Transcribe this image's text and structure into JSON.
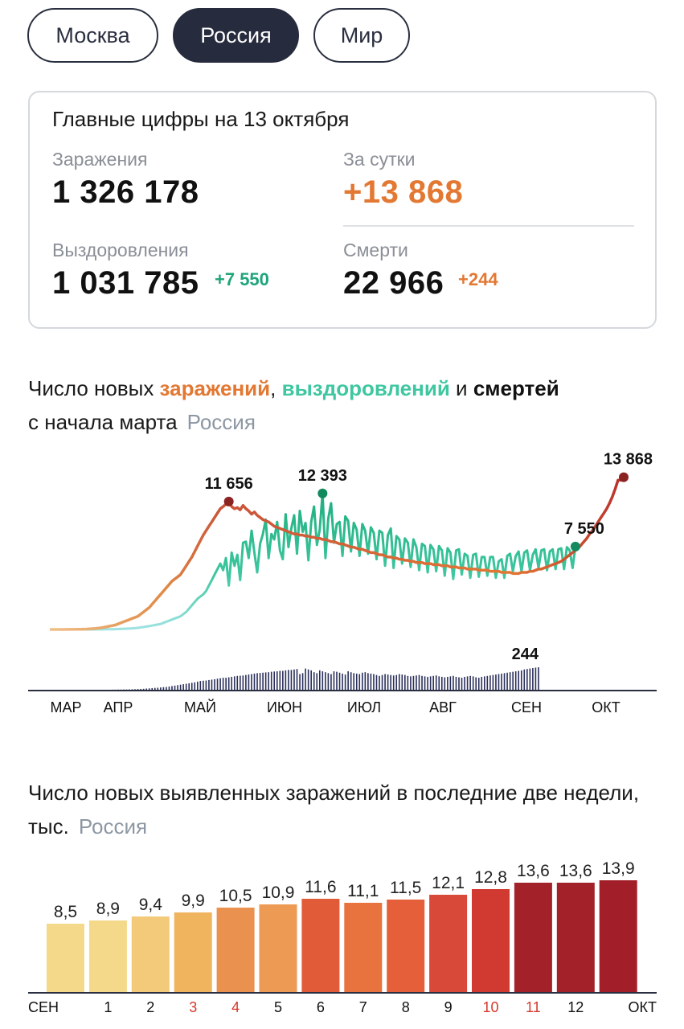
{
  "tabs": [
    {
      "label": "Москва",
      "active": false
    },
    {
      "label": "Россия",
      "active": true
    },
    {
      "label": "Мир",
      "active": false
    }
  ],
  "card": {
    "title": "Главные цифры на 13 октября",
    "infections": {
      "label": "Заражения",
      "value": "1 326 178"
    },
    "daily": {
      "label": "За сутки",
      "value": "+13 868"
    },
    "recoveries": {
      "label": "Выздоровления",
      "value": "1 031 785",
      "delta": "+7 550"
    },
    "deaths": {
      "label": "Смерти",
      "value": "22 966",
      "delta": "+244"
    }
  },
  "chart1_title": {
    "prefix": "Число новых ",
    "infections": "заражений",
    "sep1": ", ",
    "recoveries": "выздоровлений",
    "sep2": " и ",
    "deaths": "смертей",
    "line2": "с начала марта",
    "region": "Россия"
  },
  "chart2_title": {
    "text": "Число новых выявленных заражений в последние две недели, тыс.",
    "region": "Россия"
  },
  "colors": {
    "infections": "#e37833",
    "recoveries": "#3ec7a0",
    "recoveries_light": "#9fe3e2",
    "deaths": "#2a2f5a",
    "peak_dot": "#8c2323",
    "tab_active": "#262b3d",
    "weekend_label": "#d6392b"
  },
  "chart_data": [
    {
      "type": "line",
      "title": "Число новых заражений, выздоровлений и смертей с начала марта",
      "x_labels": [
        "МАР",
        "АПР",
        "МАЙ",
        "ИЮН",
        "ИЮЛ",
        "АВГ",
        "СЕН",
        "ОКТ"
      ],
      "ylim": [
        0,
        14500
      ],
      "grid": false,
      "series": [
        {
          "name": "заражений",
          "color": "#e37833",
          "values": [
            0,
            0,
            0,
            2,
            3,
            3,
            5,
            8,
            10,
            15,
            20,
            25,
            30,
            40,
            55,
            70,
            90,
            120,
            150,
            200,
            250,
            300,
            350,
            400,
            500,
            600,
            700,
            800,
            900,
            1000,
            1100,
            1200,
            1400,
            1600,
            1800,
            2000,
            2300,
            2600,
            2900,
            3200,
            3500,
            3800,
            4100,
            4400,
            4600,
            4800,
            5000,
            5400,
            5800,
            6200,
            6600,
            7100,
            7600,
            8100,
            8600,
            9000,
            9400,
            9800,
            10200,
            10600,
            11000,
            11200,
            11400,
            11656,
            11200,
            11000,
            11100,
            10900,
            11300,
            11000,
            10800,
            10500,
            10700,
            10400,
            10200,
            10000,
            9900,
            9800,
            9600,
            9400,
            9300,
            9200,
            9100,
            9000,
            8900,
            8800,
            8700,
            8700,
            8600,
            8600,
            8500,
            8500,
            8400,
            8400,
            8300,
            8300,
            8200,
            8200,
            8100,
            8000,
            8000,
            7900,
            7800,
            7800,
            7700,
            7600,
            7500,
            7500,
            7400,
            7300,
            7300,
            7200,
            7100,
            7000,
            7000,
            6900,
            6800,
            6800,
            6700,
            6600,
            6600,
            6500,
            6500,
            6400,
            6400,
            6300,
            6300,
            6200,
            6200,
            6100,
            6100,
            6100,
            6000,
            6000,
            6000,
            5900,
            5900,
            5900,
            5800,
            5800,
            5800,
            5700,
            5700,
            5700,
            5600,
            5600,
            5600,
            5500,
            5500,
            5500,
            5500,
            5400,
            5400,
            5400,
            5400,
            5300,
            5300,
            5300,
            5300,
            5200,
            5200,
            5200,
            5200,
            5100,
            5100,
            5100,
            5200,
            5200,
            5200,
            5300,
            5300,
            5400,
            5500,
            5500,
            5600,
            5700,
            5800,
            5900,
            6000,
            6100,
            6200,
            6400,
            6600,
            6800,
            7000,
            7200,
            7400,
            7700,
            8000,
            8300,
            8700,
            9000,
            9400,
            9800,
            10200,
            10600,
            11000,
            11500,
            12100,
            12800,
            13600,
            13600,
            13868
          ]
        },
        {
          "name": "выздоровлений",
          "color": "#3ec7a0",
          "values": [
            0,
            0,
            0,
            0,
            0,
            0,
            0,
            0,
            0,
            0,
            0,
            0,
            0,
            0,
            0,
            0,
            0,
            5,
            8,
            10,
            15,
            20,
            25,
            30,
            40,
            50,
            60,
            70,
            80,
            100,
            120,
            150,
            180,
            220,
            260,
            300,
            350,
            400,
            450,
            500,
            600,
            700,
            800,
            900,
            1000,
            1100,
            1200,
            1400,
            1600,
            1900,
            2200,
            2500,
            2800,
            3000,
            3200,
            3500,
            4000,
            4500,
            5000,
            5500,
            6000,
            5400,
            6500,
            4000,
            7000,
            5800,
            6800,
            4500,
            7900,
            8000,
            6500,
            9000,
            7000,
            5200,
            7800,
            8700,
            10000,
            6500,
            8700,
            8200,
            9800,
            7200,
            6400,
            10500,
            7500,
            9200,
            10400,
            6900,
            10800,
            8900,
            9700,
            6300,
            9800,
            11200,
            7700,
            9100,
            12393,
            6500,
            10100,
            11500,
            7900,
            9600,
            9800,
            6700,
            10300,
            9900,
            7100,
            9700,
            9100,
            6700,
            9600,
            9000,
            6900,
            9300,
            8800,
            6400,
            9000,
            8800,
            5800,
            8600,
            9200,
            5600,
            8500,
            8200,
            6000,
            8300,
            7900,
            5700,
            8200,
            7500,
            5400,
            7800,
            7600,
            5200,
            7700,
            7300,
            5300,
            7600,
            7200,
            4900,
            7400,
            7000,
            4600,
            7200,
            7300,
            5000,
            6900,
            6700,
            4700,
            6800,
            6900,
            4800,
            6600,
            6600,
            4900,
            6600,
            6600,
            4700,
            6200,
            6400,
            4700,
            6700,
            6900,
            5300,
            6700,
            7100,
            5300,
            7000,
            7200,
            5400,
            6800,
            7300,
            5600,
            7200,
            7300,
            5400,
            7100,
            7300,
            5500,
            7300,
            7400,
            5500,
            7500,
            7200,
            5600,
            7550
          ]
        },
        {
          "name": "смертей",
          "color": "#2a2f5a",
          "values": [
            0,
            0,
            0,
            0,
            0,
            0,
            0,
            0,
            0,
            0,
            0,
            0,
            0,
            0,
            0,
            0,
            0,
            0,
            0,
            0,
            0,
            0,
            1,
            1,
            2,
            2,
            3,
            3,
            4,
            5,
            6,
            8,
            9,
            10,
            13,
            15,
            18,
            20,
            22,
            25,
            28,
            30,
            35,
            40,
            45,
            50,
            55,
            60,
            65,
            70,
            75,
            80,
            88,
            95,
            98,
            100,
            105,
            110,
            115,
            120,
            125,
            130,
            130,
            135,
            140,
            145,
            150,
            152,
            155,
            160,
            165,
            170,
            175,
            180,
            182,
            185,
            188,
            190,
            195,
            198,
            200,
            205,
            205,
            210,
            215,
            215,
            220,
            225,
            170,
            180,
            230,
            220,
            210,
            190,
            180,
            210,
            200,
            190,
            180,
            170,
            200,
            195,
            185,
            175,
            165,
            200,
            190,
            180,
            175,
            170,
            185,
            190,
            180,
            175,
            170,
            160,
            150,
            160,
            170,
            165,
            160,
            155,
            160,
            170,
            165,
            160,
            150,
            145,
            150,
            155,
            160,
            150,
            145,
            140,
            145,
            150,
            155,
            145,
            140,
            135,
            140,
            145,
            150,
            140,
            135,
            130,
            140,
            145,
            150,
            145,
            135,
            130,
            140,
            145,
            150,
            155,
            160,
            165,
            170,
            175,
            180,
            185,
            190,
            195,
            200,
            205,
            210,
            220,
            225,
            230,
            235,
            240,
            244
          ]
        }
      ],
      "annotations": [
        {
          "label": "11 656",
          "series": "заражений",
          "index": 63
        },
        {
          "label": "12 393",
          "series": "выздоровлений",
          "index": 96
        },
        {
          "label": "13 868",
          "series": "заражений",
          "index": "last"
        },
        {
          "label": "7 550",
          "series": "выздоровлений",
          "index": "last"
        },
        {
          "label": "244",
          "series": "смертей",
          "index": "last"
        }
      ]
    },
    {
      "type": "bar",
      "title": "Число новых выявленных заражений в последние две недели, тыс.",
      "categories": [
        "СЕН",
        "1",
        "2",
        "3",
        "4",
        "5",
        "6",
        "7",
        "8",
        "9",
        "10",
        "11",
        "12",
        "ОКТ"
      ],
      "weekend_categories": [
        "3",
        "4",
        "10",
        "11"
      ],
      "values": [
        8.5,
        8.9,
        9.4,
        9.9,
        10.5,
        10.9,
        11.6,
        11.1,
        11.5,
        12.1,
        12.8,
        13.6,
        13.6,
        13.9
      ],
      "value_labels": [
        "8,5",
        "8,9",
        "9,4",
        "9,9",
        "10,5",
        "10,9",
        "11,6",
        "11,1",
        "11,5",
        "12,1",
        "12,8",
        "13,6",
        "13,6",
        "13,9"
      ],
      "bar_colors": [
        "#f4d98a",
        "#f4d98a",
        "#f3c97a",
        "#f0b45e",
        "#eb9150",
        "#ec9a54",
        "#e25b38",
        "#e8733f",
        "#e5603a",
        "#d8493a",
        "#d03a30",
        "#a3222a",
        "#a3222a",
        "#a21f2a"
      ],
      "ylim": [
        0,
        15
      ]
    }
  ]
}
